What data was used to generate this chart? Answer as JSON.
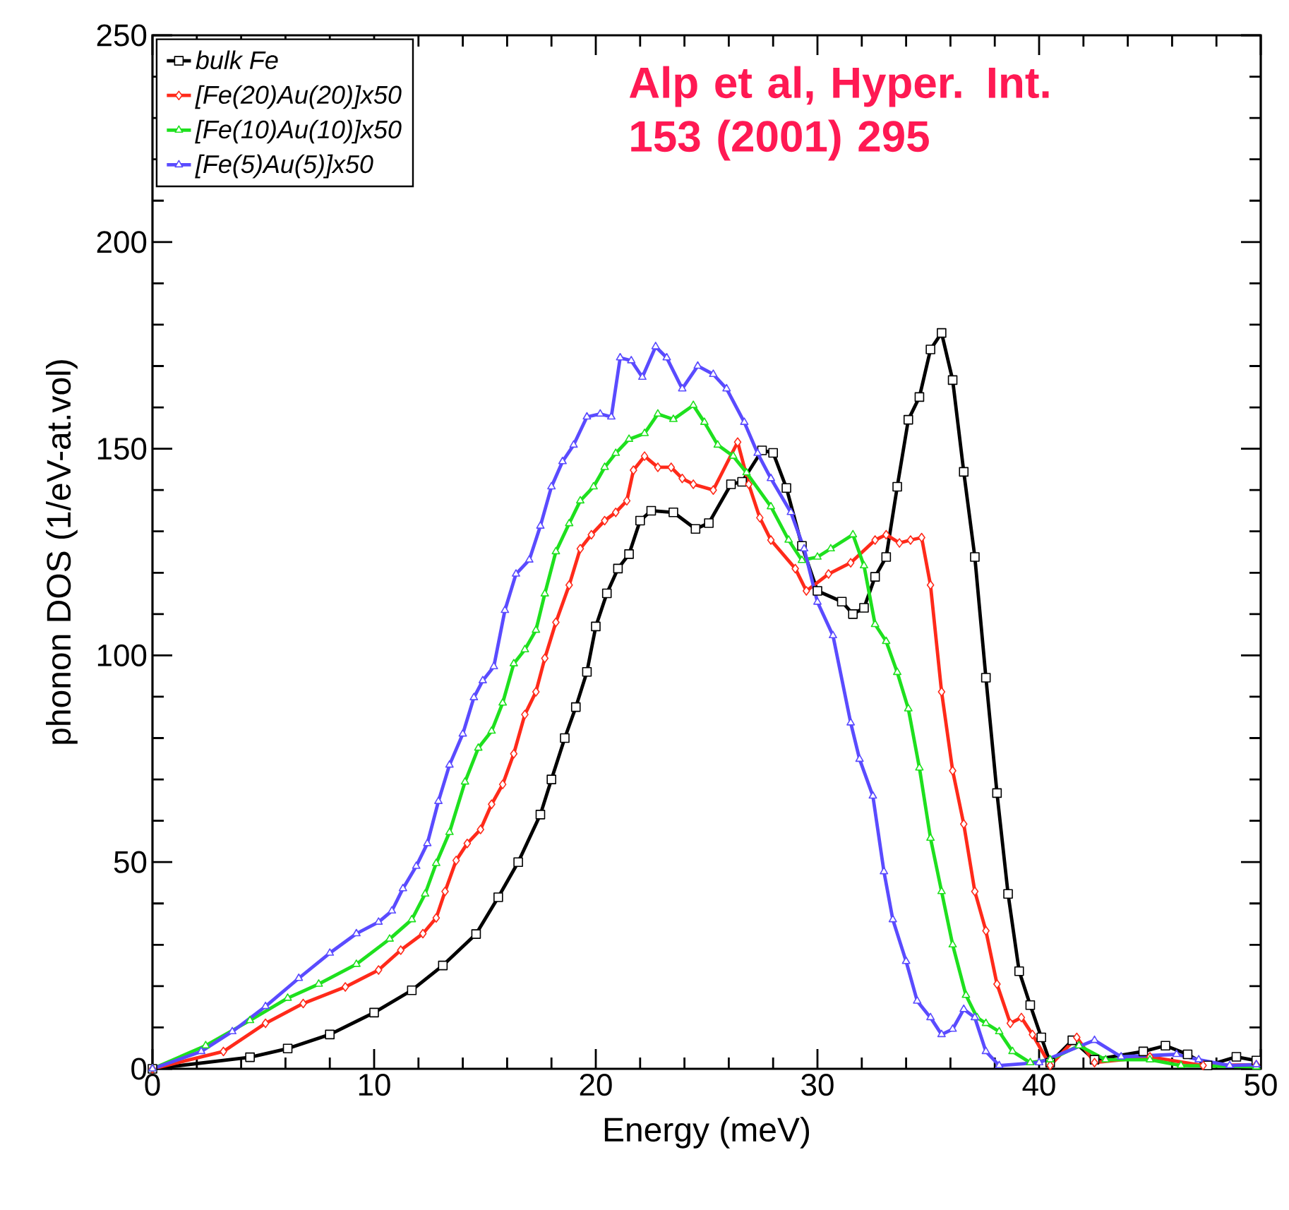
{
  "chart_data": {
    "type": "line",
    "xlabel": "Energy (meV)",
    "ylabel": "phonon DOS (1/eV-at.vol)",
    "xlim": [
      0,
      50
    ],
    "ylim": [
      0,
      250
    ],
    "xticks": [
      0,
      10,
      20,
      30,
      40,
      50
    ],
    "yticks": [
      0,
      50,
      100,
      150,
      200,
      250
    ],
    "grid": false,
    "legend": "top left",
    "line_style": "solid",
    "annotations": [
      "Alp et al, Hyper. Int. 153 (2001) 295"
    ],
    "series": [
      {
        "name": "bulk Fe",
        "color": "#000000",
        "marker": "square",
        "x": [
          0,
          4.4,
          6.1,
          8.0,
          10,
          11.7,
          13.1,
          14.6,
          15.6,
          16.5,
          17.5,
          18.0,
          18.6,
          19.1,
          19.6,
          20.0,
          20.5,
          21.0,
          21.5,
          22.0,
          22.5,
          23.5,
          24.5,
          25.1,
          26.1,
          26.6,
          27.5,
          28.0,
          28.6,
          29.3,
          30,
          31.1,
          31.6,
          32.1,
          32.6,
          33.1,
          33.6,
          34.1,
          34.6,
          35.1,
          35.6,
          36.1,
          36.6,
          37.1,
          37.6,
          38.1,
          38.6,
          39.1,
          39.6,
          40.1,
          40.5,
          41.5,
          42.5,
          44.7,
          45.7,
          46.7,
          47.6,
          48.9,
          49.8
        ],
        "values": [
          0,
          2.8,
          4.9,
          8.3,
          13.6,
          19,
          25,
          32.6,
          41.5,
          50,
          61.5,
          70,
          80,
          87.5,
          96,
          107,
          115,
          121,
          124.5,
          132.6,
          135,
          134.6,
          130.6,
          132,
          141.4,
          142,
          149.6,
          149,
          140.5,
          126.5,
          115.6,
          113,
          110,
          111.5,
          119,
          123.8,
          140.8,
          157,
          162.5,
          174,
          178,
          166.6,
          144.4,
          123.8,
          94.6,
          66.7,
          42.3,
          23.6,
          15.4,
          7.6,
          1.5,
          6.9,
          2.2,
          4.2,
          5.6,
          3.5,
          0.8,
          2.9,
          2
        ]
      },
      {
        "name": "[Fe(20)Au(20)]x50",
        "color": "#ff2a1a",
        "marker": "diamond",
        "x": [
          0,
          3.2,
          5.1,
          6.8,
          8.7,
          10.2,
          11.2,
          12.2,
          12.8,
          13.2,
          13.7,
          14.2,
          14.8,
          15.3,
          15.8,
          16.3,
          16.8,
          17.3,
          17.7,
          18.2,
          18.8,
          19.3,
          19.8,
          20.4,
          20.9,
          21.4,
          21.7,
          22.2,
          22.8,
          23.4,
          23.9,
          24.4,
          25.3,
          26.4,
          26.9,
          27.4,
          27.9,
          29.0,
          29.5,
          30.5,
          31.5,
          32.6,
          33.1,
          33.7,
          34.2,
          34.7,
          35.1,
          35.6,
          36.1,
          36.6,
          37.1,
          37.6,
          38.1,
          38.7,
          39.2,
          39.7,
          40.5,
          41.7,
          42.5,
          45,
          47.4,
          49.8
        ],
        "values": [
          0,
          4.2,
          11,
          15.8,
          19.8,
          23.9,
          28.7,
          32.7,
          36.5,
          42.9,
          50.4,
          54.5,
          57.9,
          64,
          68.8,
          76.2,
          85.7,
          91.2,
          99.3,
          108,
          117,
          125.8,
          129.2,
          132.6,
          134.6,
          137.4,
          144.8,
          148.2,
          145.5,
          145.5,
          142.8,
          141.4,
          140,
          151.6,
          141.4,
          133.3,
          127.9,
          121,
          115.6,
          119.7,
          122.4,
          127.9,
          129.2,
          127.2,
          127.9,
          128.5,
          117,
          91.2,
          72.1,
          59.2,
          42.9,
          33.4,
          20.5,
          11,
          12.4,
          8.3,
          0.8,
          7.6,
          1.5,
          2.9,
          0.8,
          1
        ]
      },
      {
        "name": "[Fe(10)Au(10)]x50",
        "color": "#1ee01e",
        "marker": "triangle",
        "x": [
          0,
          2.4,
          4.4,
          6.1,
          7.5,
          9.2,
          10.7,
          11.7,
          12.3,
          12.8,
          13.4,
          14.1,
          14.7,
          15.3,
          15.8,
          16.3,
          16.8,
          17.3,
          17.7,
          18.2,
          18.8,
          19.3,
          19.9,
          20.4,
          20.9,
          21.5,
          22.2,
          22.8,
          23.5,
          24.4,
          24.9,
          25.5,
          26.2,
          26.8,
          27.9,
          28.7,
          29.3,
          30,
          30.6,
          31.6,
          32.1,
          32.6,
          33.1,
          33.6,
          34.1,
          34.6,
          35.1,
          35.6,
          36.1,
          36.7,
          37.2,
          37.6,
          38.2,
          38.8,
          39.6,
          40.5,
          41.8,
          43,
          45,
          46.4,
          49.8
        ],
        "values": [
          0,
          5.6,
          11.7,
          17.1,
          20.5,
          25.3,
          31.4,
          36.1,
          42.3,
          49.7,
          57.2,
          69.4,
          77.6,
          81.7,
          88.5,
          98,
          101.4,
          106.1,
          114.9,
          125.1,
          131.9,
          137.4,
          140.8,
          145.5,
          148.9,
          152.3,
          153.7,
          158.4,
          157.1,
          160.5,
          156.4,
          150.9,
          148.2,
          144.2,
          136,
          127.9,
          123,
          123.8,
          125.8,
          129.2,
          121.7,
          107.5,
          103.4,
          95.9,
          87.1,
          72.8,
          55.8,
          42.9,
          30,
          17.8,
          12.4,
          11,
          9,
          4.2,
          1.5,
          2.2,
          5.6,
          2.2,
          2.2,
          0.8,
          0.5
        ]
      },
      {
        "name": "[Fe(5)Au(5)]x50",
        "color": "#5a4bff",
        "marker": "triangle",
        "x": [
          0,
          2.2,
          3.6,
          5.1,
          6.6,
          8.0,
          9.2,
          10.2,
          10.8,
          11.3,
          11.9,
          12.4,
          12.9,
          13.4,
          14.0,
          14.5,
          14.9,
          15.4,
          15.9,
          16.4,
          17.0,
          17.5,
          18.0,
          18.5,
          19.0,
          19.6,
          20.2,
          20.7,
          21.1,
          21.6,
          22.1,
          22.7,
          23.2,
          23.9,
          24.6,
          25.3,
          25.9,
          26.7,
          27.3,
          27.9,
          28.8,
          29.4,
          30,
          30.7,
          31.5,
          31.9,
          32.5,
          33,
          33.4,
          34,
          34.5,
          35.1,
          35.6,
          36.1,
          36.6,
          37.1,
          37.6,
          38.2,
          40,
          42.5,
          43.7,
          46.2,
          47.2,
          48.6,
          49.8
        ],
        "values": [
          0,
          4.2,
          9,
          15.1,
          21.9,
          28,
          32.7,
          35.5,
          38.2,
          43.6,
          49,
          54.5,
          64.7,
          73.5,
          81,
          89.8,
          93.9,
          97.3,
          110.9,
          119.7,
          123.1,
          131.3,
          140.8,
          146.9,
          150.9,
          157.7,
          158.4,
          157.7,
          172,
          171.3,
          167.3,
          174.7,
          172,
          164.5,
          170,
          168,
          164.5,
          156.4,
          148.9,
          142.8,
          134.6,
          125.8,
          112.9,
          104.8,
          83.7,
          74.9,
          66,
          47.7,
          36.1,
          26,
          16.4,
          12.4,
          8.3,
          9.6,
          14.4,
          12.4,
          4.2,
          0.8,
          1.5,
          6.9,
          2.9,
          3.5,
          2.2,
          0.8,
          1
        ]
      }
    ]
  }
}
